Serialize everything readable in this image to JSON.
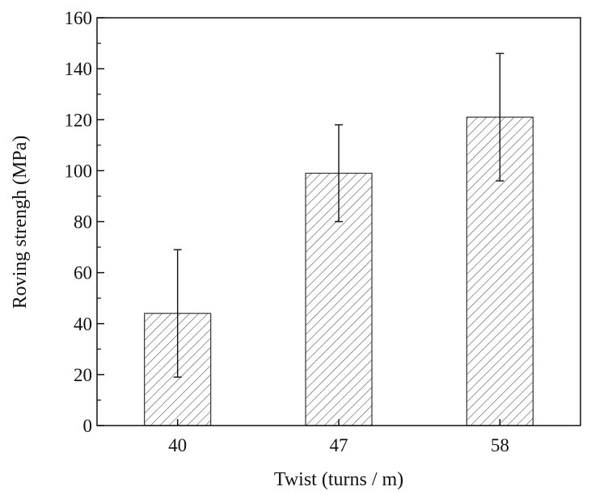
{
  "chart_data": {
    "type": "bar",
    "categories": [
      "40",
      "47",
      "58"
    ],
    "values": [
      44,
      99,
      121
    ],
    "error_low": [
      19,
      80,
      96
    ],
    "error_high": [
      69,
      118,
      146
    ],
    "xlabel": "Twist (turns / m)",
    "ylabel": "Roving strengh (MPa)",
    "ylim": [
      0,
      160
    ],
    "yticks": [
      "0",
      "20",
      "40",
      "60",
      "80",
      "100",
      "120",
      "140",
      "160"
    ],
    "grid": false,
    "bar_fill": "hatched",
    "colors": {
      "axis": "#111111",
      "bar_stroke": "#333333",
      "hatch": "#555555"
    }
  }
}
